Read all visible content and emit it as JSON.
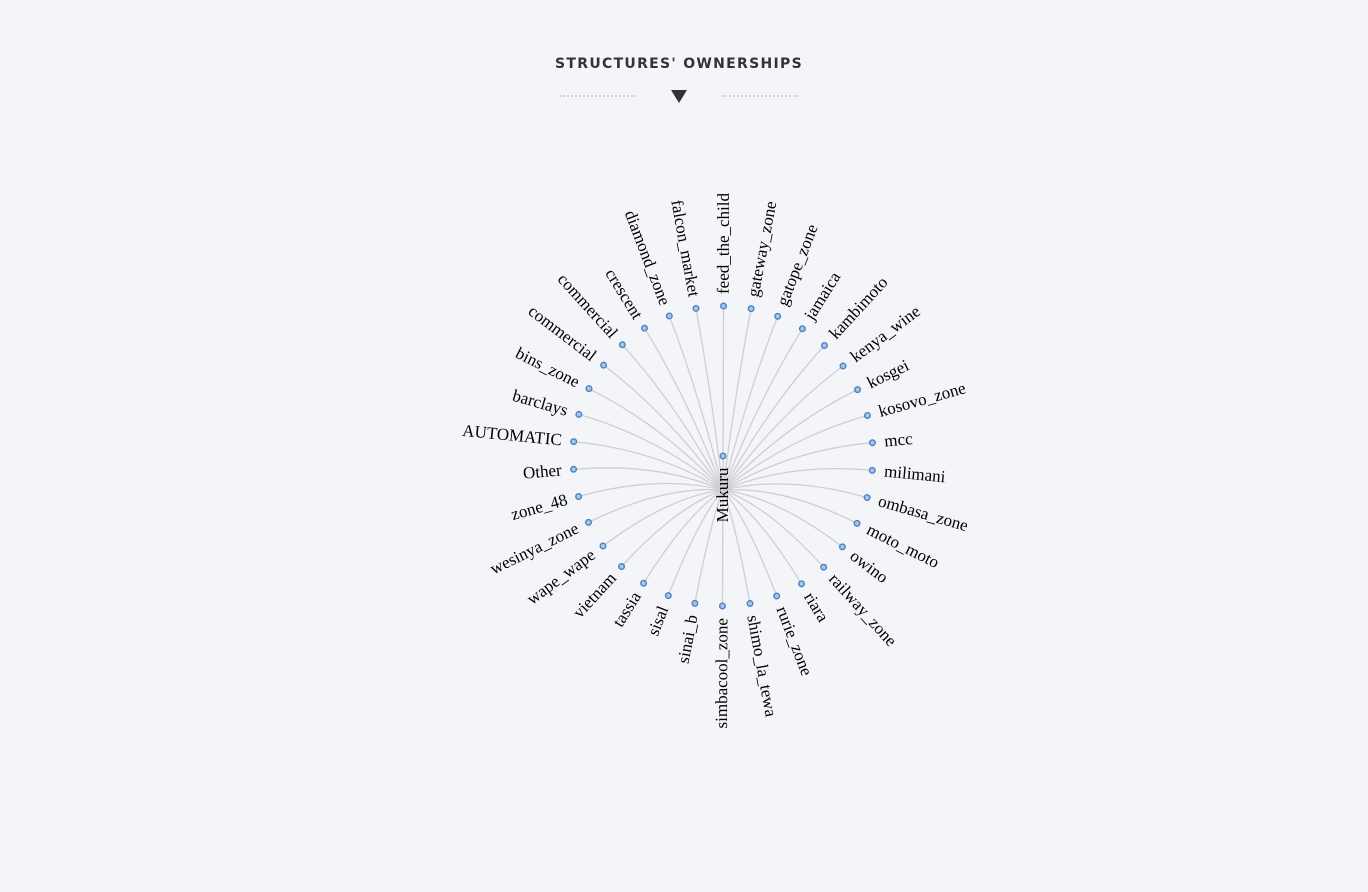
{
  "header": {
    "title": "STRUCTURES' OWNERSHIPS"
  },
  "tree": {
    "root": "Mukuru",
    "leaves": [
      "AUTOMATIC",
      "barclays",
      "bins_zone",
      "commercial",
      "commercial",
      "crescent",
      "diamond_zone",
      "falcon_market",
      "feed_the_child",
      "gateway_zone",
      "gatope_zone",
      "jamaica",
      "kambimoto",
      "kenya_wine",
      "kosgei",
      "kosovo_zone",
      "mcc",
      "milimani",
      "ombasa_zone",
      "moto_moto",
      "owino",
      "railway_zone",
      "riara",
      "rurie_zone",
      "shimo_la_tewa",
      "simbacool_zone",
      "sinai_b",
      "sisal",
      "tassia",
      "vietnam",
      "wape_wape",
      "wesinya_zone",
      "zone_48",
      "Other"
    ]
  },
  "colors": {
    "node_fill": "#a7c6e8",
    "node_stroke": "#4a84c0",
    "link": "#cfcfd2"
  }
}
